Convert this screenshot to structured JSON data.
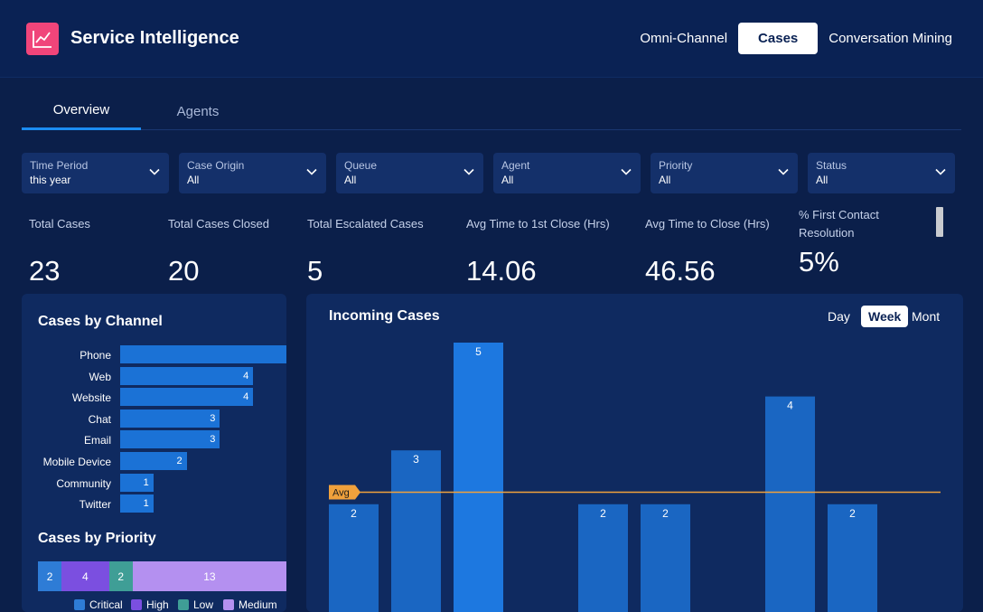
{
  "app": {
    "title": "Service Intelligence",
    "logo_icon": "line-chart-icon"
  },
  "nav": [
    {
      "label": "Omni-Channel",
      "active": false
    },
    {
      "label": "Cases",
      "active": true
    },
    {
      "label": "Conversation Mining",
      "active": false
    }
  ],
  "tabs": [
    {
      "label": "Overview",
      "active": true
    },
    {
      "label": "Agents",
      "active": false
    }
  ],
  "filters": [
    {
      "label": "Time Period",
      "value": "this year"
    },
    {
      "label": "Case Origin",
      "value": "All"
    },
    {
      "label": "Queue",
      "value": "All"
    },
    {
      "label": "Agent",
      "value": "All"
    },
    {
      "label": "Priority",
      "value": "All"
    },
    {
      "label": "Status",
      "value": "All"
    }
  ],
  "kpis": [
    {
      "label": "Total Cases",
      "value": "23"
    },
    {
      "label": "Total Cases Closed",
      "value": "20"
    },
    {
      "label": "Total Escalated Cases",
      "value": "5"
    },
    {
      "label": "Avg Time to 1st Close (Hrs)",
      "value": "14.06"
    },
    {
      "label": "Avg Time to Close (Hrs)",
      "value": "46.56"
    },
    {
      "label_line1": "% First Contact",
      "label_line2": "Resolution",
      "value": "5%"
    }
  ],
  "cases_by_channel": {
    "title": "Cases by Channel",
    "bar_color": "#1b72d6",
    "items": [
      {
        "label": "Phone",
        "value": 5,
        "value_label": ""
      },
      {
        "label": "Web",
        "value": 4,
        "value_label": "4"
      },
      {
        "label": "Website",
        "value": 4,
        "value_label": "4"
      },
      {
        "label": "Chat",
        "value": 3,
        "value_label": "3"
      },
      {
        "label": "Email",
        "value": 3,
        "value_label": "3"
      },
      {
        "label": "Mobile Device",
        "value": 2,
        "value_label": "2"
      },
      {
        "label": "Community",
        "value": 1,
        "value_label": "1"
      },
      {
        "label": "Twitter",
        "value": 1,
        "value_label": "1"
      }
    ]
  },
  "cases_by_priority": {
    "title": "Cases by Priority",
    "segments": [
      {
        "name": "Critical",
        "value": 2,
        "label": "2",
        "color": "#2e7cd6"
      },
      {
        "name": "High",
        "value": 4,
        "label": "4",
        "color": "#7b4fe0"
      },
      {
        "name": "Low",
        "value": 2,
        "label": "2",
        "color": "#3f9e96"
      },
      {
        "name": "Medium",
        "value": 13,
        "label": "13",
        "color": "#b490f0"
      }
    ]
  },
  "incoming_cases": {
    "title": "Incoming Cases",
    "granularity": [
      {
        "label": "Day",
        "active": false
      },
      {
        "label": "Week",
        "active": true
      },
      {
        "label": "Mont",
        "active": false
      }
    ],
    "avg_label": "Avg",
    "avg_color": "#f0a13c"
  },
  "chart_data": {
    "type": "bar",
    "title": "Incoming Cases",
    "xlabel": "",
    "ylabel": "",
    "bar_color": "#1b72d6",
    "values": [
      2,
      3,
      5,
      0,
      2,
      2,
      0,
      4,
      2
    ],
    "labels": [
      "2",
      "3",
      "5",
      "",
      "2",
      "2",
      "",
      "4",
      "2"
    ],
    "avg_line": true,
    "grid": false
  }
}
